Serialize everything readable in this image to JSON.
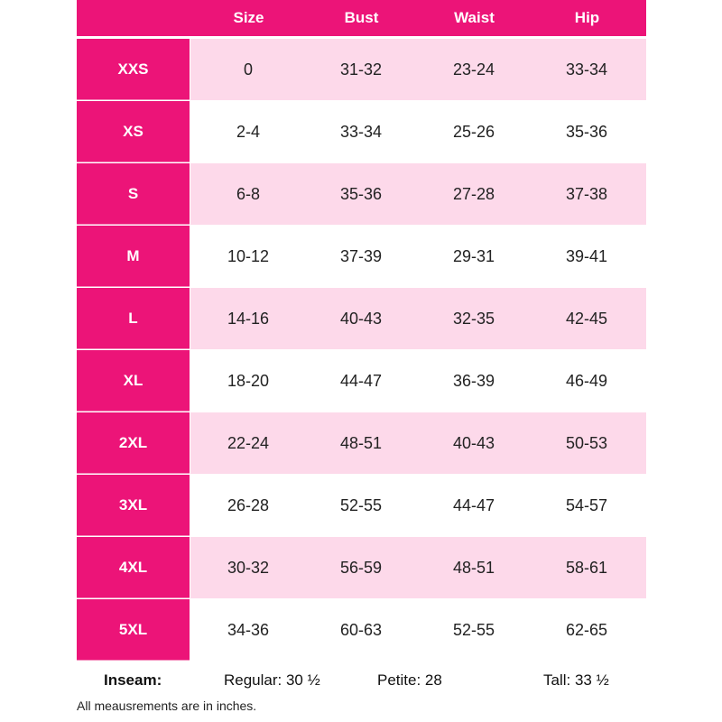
{
  "colors": {
    "accent": "#ec1478",
    "stripe": "#fdd9ea"
  },
  "headers": [
    "Size",
    "Bust",
    "Waist",
    "Hip"
  ],
  "rows": [
    {
      "label": "XXS",
      "values": [
        "0",
        "31-32",
        "23-24",
        "33-34"
      ]
    },
    {
      "label": "XS",
      "values": [
        "2-4",
        "33-34",
        "25-26",
        "35-36"
      ]
    },
    {
      "label": "S",
      "values": [
        "6-8",
        "35-36",
        "27-28",
        "37-38"
      ]
    },
    {
      "label": "M",
      "values": [
        "10-12",
        "37-39",
        "29-31",
        "39-41"
      ]
    },
    {
      "label": "L",
      "values": [
        "14-16",
        "40-43",
        "32-35",
        "42-45"
      ]
    },
    {
      "label": "XL",
      "values": [
        "18-20",
        "44-47",
        "36-39",
        "46-49"
      ]
    },
    {
      "label": "2XL",
      "values": [
        "22-24",
        "48-51",
        "40-43",
        "50-53"
      ]
    },
    {
      "label": "3XL",
      "values": [
        "26-28",
        "52-55",
        "44-47",
        "54-57"
      ]
    },
    {
      "label": "4XL",
      "values": [
        "30-32",
        "56-59",
        "48-51",
        "58-61"
      ]
    },
    {
      "label": "5XL",
      "values": [
        "34-36",
        "60-63",
        "52-55",
        "62-65"
      ]
    }
  ],
  "inseam": {
    "label": "Inseam:",
    "regular": "Regular: 30 ½",
    "petite": "Petite: 28",
    "tall": "Tall: 33 ½"
  },
  "note": "All meausrements are in inches."
}
